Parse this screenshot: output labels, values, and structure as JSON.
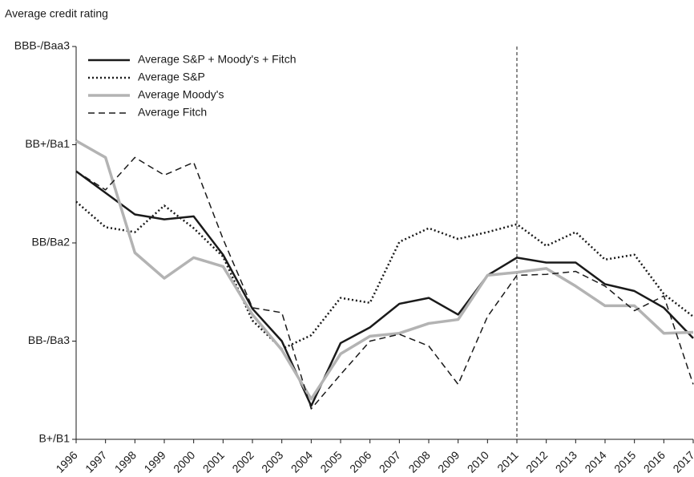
{
  "chart_data": {
    "type": "line",
    "title": "Average credit rating",
    "x": [
      1996,
      1997,
      1998,
      1999,
      2000,
      2001,
      2002,
      2003,
      2004,
      2005,
      2006,
      2007,
      2008,
      2009,
      2010,
      2011,
      2012,
      2013,
      2014,
      2015,
      2016,
      2017
    ],
    "xlim": [
      1996,
      2017
    ],
    "ylim": [
      1,
      5
    ],
    "yticks": [
      {
        "value": 1,
        "label": "B+/B1"
      },
      {
        "value": 2,
        "label": "BB-/Ba3"
      },
      {
        "value": 3,
        "label": "BB/Ba2"
      },
      {
        "value": 4,
        "label": "BB+/Ba1"
      },
      {
        "value": 5,
        "label": "BBB-/Baa3"
      }
    ],
    "vline_x": 2011,
    "legend": "upper-left",
    "series": [
      {
        "name": "Average S&P + Moody's + Fitch",
        "color": "#1a1a1a",
        "style": "solid",
        "values": [
          3.73,
          3.51,
          3.29,
          3.24,
          3.27,
          2.88,
          2.33,
          2.0,
          1.34,
          1.98,
          2.14,
          2.38,
          2.44,
          2.27,
          2.67,
          2.85,
          2.8,
          2.8,
          2.58,
          2.51,
          2.34,
          2.03
        ]
      },
      {
        "name": "Average S&P",
        "color": "#1a1a1a",
        "style": "dotted",
        "values": [
          3.42,
          3.16,
          3.11,
          3.38,
          3.15,
          2.86,
          2.21,
          1.92,
          2.06,
          2.44,
          2.39,
          3.01,
          3.15,
          3.04,
          3.11,
          3.19,
          2.97,
          3.11,
          2.83,
          2.88,
          2.48,
          2.25
        ]
      },
      {
        "name": "Average Moody's",
        "color": "#b3b3b3",
        "style": "solid",
        "values": [
          4.04,
          3.87,
          2.9,
          2.64,
          2.85,
          2.76,
          2.27,
          1.91,
          1.41,
          1.87,
          2.05,
          2.08,
          2.18,
          2.22,
          2.67,
          2.7,
          2.74,
          2.56,
          2.36,
          2.36,
          2.08,
          2.09
        ]
      },
      {
        "name": "Average Fitch",
        "color": "#1a1a1a",
        "style": "dashed",
        "values": [
          3.73,
          3.54,
          3.87,
          3.69,
          3.82,
          3.04,
          2.34,
          2.29,
          1.31,
          1.66,
          2.0,
          2.07,
          1.95,
          1.56,
          2.25,
          2.67,
          2.68,
          2.71,
          2.56,
          2.31,
          2.46,
          1.56
        ]
      }
    ]
  }
}
